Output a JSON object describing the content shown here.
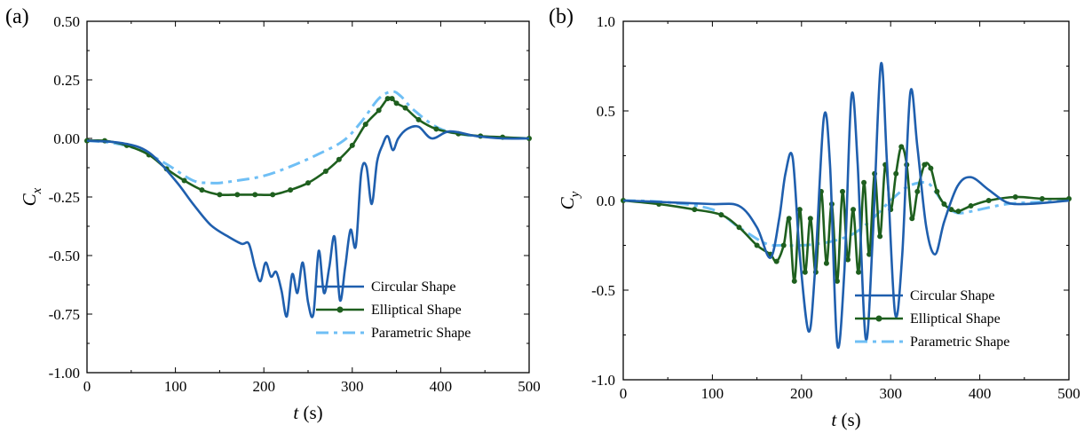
{
  "chart_data": [
    {
      "type": "line",
      "panel_label": "(a)",
      "xlabel_var": "t",
      "xlabel_unit": " (s)",
      "ylabel_var": "C",
      "ylabel_sub": "x",
      "xlim": [
        0,
        500
      ],
      "ylim": [
        -1.0,
        0.5
      ],
      "xticks": [
        0,
        100,
        200,
        300,
        400,
        500
      ],
      "yticks": [
        -1.0,
        -0.75,
        -0.5,
        -0.25,
        0.0,
        0.25,
        0.5
      ],
      "xtick_labels": [
        "0",
        "100",
        "200",
        "300",
        "400",
        "500"
      ],
      "ytick_labels": [
        "-1.00",
        "-0.75",
        "-0.50",
        "-0.25",
        "0.00",
        "0.25",
        "0.50"
      ],
      "legend_position": "bottom-right",
      "series": [
        {
          "name": "Circular Shape",
          "color": "#1f5fae",
          "style": "solid",
          "x": [
            0,
            40,
            70,
            100,
            120,
            140,
            160,
            175,
            183,
            190,
            196,
            202,
            208,
            214,
            220,
            226,
            232,
            238,
            244,
            250,
            256,
            262,
            268,
            274,
            280,
            286,
            292,
            298,
            304,
            310,
            316,
            322,
            328,
            334,
            340,
            346,
            352,
            362,
            375,
            390,
            410,
            440,
            470,
            500
          ],
          "values": [
            -0.01,
            -0.02,
            -0.06,
            -0.18,
            -0.28,
            -0.37,
            -0.42,
            -0.45,
            -0.45,
            -0.55,
            -0.61,
            -0.53,
            -0.59,
            -0.57,
            -0.65,
            -0.76,
            -0.58,
            -0.66,
            -0.53,
            -0.7,
            -0.75,
            -0.48,
            -0.66,
            -0.55,
            -0.42,
            -0.69,
            -0.55,
            -0.39,
            -0.46,
            -0.15,
            -0.12,
            -0.28,
            -0.1,
            -0.03,
            0.01,
            -0.05,
            0.0,
            0.04,
            0.05,
            0.0,
            0.03,
            0.01,
            0.0,
            0.0
          ]
        },
        {
          "name": "Elliptical Shape",
          "color": "#1e5f1e",
          "style": "solid-dot",
          "x": [
            0,
            20,
            45,
            70,
            90,
            110,
            130,
            150,
            170,
            190,
            210,
            230,
            250,
            270,
            285,
            300,
            315,
            330,
            340,
            345,
            350,
            360,
            375,
            395,
            420,
            445,
            470,
            500
          ],
          "values": [
            -0.01,
            -0.01,
            -0.03,
            -0.07,
            -0.13,
            -0.18,
            -0.22,
            -0.24,
            -0.24,
            -0.24,
            -0.24,
            -0.22,
            -0.19,
            -0.14,
            -0.09,
            -0.03,
            0.06,
            0.12,
            0.17,
            0.17,
            0.15,
            0.13,
            0.08,
            0.04,
            0.02,
            0.01,
            0.005,
            0.0
          ]
        },
        {
          "name": "Parametric Shape",
          "color": "#6fbff5",
          "style": "dash-dot",
          "x": [
            0,
            30,
            60,
            90,
            120,
            140,
            150,
            170,
            200,
            230,
            260,
            290,
            310,
            330,
            345,
            355,
            370,
            400,
            440,
            500
          ],
          "values": [
            -0.01,
            -0.02,
            -0.05,
            -0.11,
            -0.18,
            -0.19,
            -0.19,
            -0.18,
            -0.16,
            -0.12,
            -0.07,
            -0.01,
            0.07,
            0.17,
            0.2,
            0.18,
            0.12,
            0.04,
            0.01,
            0.0
          ]
        }
      ]
    },
    {
      "type": "line",
      "panel_label": "(b)",
      "xlabel_var": "t",
      "xlabel_unit": " (s)",
      "ylabel_var": "C",
      "ylabel_sub": "y",
      "xlim": [
        0,
        500
      ],
      "ylim": [
        -1.0,
        1.0
      ],
      "xticks": [
        0,
        100,
        200,
        300,
        400,
        500
      ],
      "yticks": [
        -1.0,
        -0.5,
        0.0,
        0.5,
        1.0
      ],
      "xtick_labels": [
        "0",
        "100",
        "200",
        "300",
        "400",
        "500"
      ],
      "ytick_labels": [
        "-1.0",
        "-0.5",
        "0.0",
        "0.5",
        "1.0"
      ],
      "legend_position": "bottom-right",
      "series": [
        {
          "name": "Circular Shape",
          "color": "#1f5fae",
          "style": "solid",
          "x": [
            0,
            50,
            100,
            130,
            150,
            165,
            175,
            182,
            190,
            198,
            208,
            215,
            225,
            232,
            240,
            248,
            256,
            263,
            272,
            280,
            289,
            296,
            305,
            313,
            322,
            330,
            340,
            350,
            360,
            375,
            390,
            410,
            430,
            450,
            480,
            500
          ],
          "values": [
            0.0,
            -0.01,
            -0.02,
            -0.03,
            -0.15,
            -0.32,
            -0.1,
            0.15,
            0.24,
            -0.3,
            -0.73,
            -0.4,
            0.46,
            0.2,
            -0.8,
            -0.4,
            0.58,
            0.2,
            -0.77,
            -0.2,
            0.76,
            0.2,
            -0.63,
            -0.3,
            0.6,
            0.3,
            -0.15,
            -0.3,
            -0.12,
            0.08,
            0.13,
            0.06,
            -0.01,
            -0.02,
            -0.01,
            0.0
          ]
        },
        {
          "name": "Elliptical Shape",
          "color": "#1e5f1e",
          "style": "solid-dot",
          "x": [
            0,
            40,
            80,
            110,
            130,
            150,
            165,
            172,
            180,
            186,
            192,
            198,
            204,
            210,
            216,
            222,
            228,
            234,
            240,
            246,
            252,
            258,
            264,
            270,
            276,
            282,
            288,
            294,
            300,
            306,
            312,
            318,
            324,
            330,
            338,
            345,
            352,
            360,
            368,
            376,
            390,
            410,
            440,
            470,
            500
          ],
          "values": [
            0.0,
            -0.02,
            -0.05,
            -0.08,
            -0.15,
            -0.25,
            -0.3,
            -0.34,
            -0.25,
            -0.1,
            -0.45,
            -0.05,
            -0.4,
            -0.1,
            -0.4,
            0.05,
            -0.35,
            -0.02,
            -0.45,
            0.05,
            -0.33,
            -0.05,
            -0.4,
            0.1,
            -0.3,
            0.15,
            -0.2,
            0.2,
            -0.05,
            0.15,
            0.3,
            0.2,
            -0.1,
            0.05,
            0.2,
            0.18,
            0.05,
            -0.02,
            -0.05,
            -0.06,
            -0.03,
            0.0,
            0.02,
            0.01,
            0.01
          ]
        },
        {
          "name": "Parametric Shape",
          "color": "#6fbff5",
          "style": "dash-dot",
          "x": [
            0,
            50,
            100,
            130,
            160,
            180,
            200,
            220,
            240,
            260,
            280,
            300,
            320,
            340,
            350,
            360,
            370,
            380,
            400,
            430,
            460,
            500
          ],
          "values": [
            0.0,
            -0.01,
            -0.05,
            -0.15,
            -0.24,
            -0.25,
            -0.25,
            -0.24,
            -0.22,
            -0.18,
            -0.1,
            0.0,
            0.08,
            0.1,
            0.05,
            -0.02,
            -0.06,
            -0.07,
            -0.05,
            -0.02,
            -0.01,
            0.0
          ]
        }
      ]
    }
  ]
}
